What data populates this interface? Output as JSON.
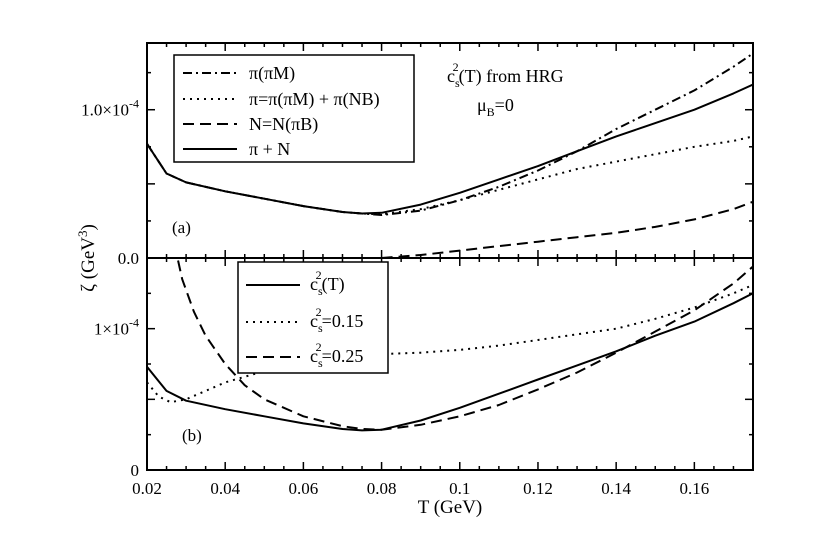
{
  "figure": {
    "xlabel": "T (GeV)",
    "ylabel_main": "ζ (GeV",
    "ylabel_sup": "3",
    "ylabel_close": ")"
  },
  "chart_data": [
    {
      "type": "line",
      "panel_label": "(a)",
      "annotation": {
        "line1_base": "c",
        "line1_sub": "s",
        "line1_sup": "2",
        "line1_rest": "(T) from HRG",
        "line2_base": "μ",
        "line2_sub": "B",
        "line2_rest": "=0"
      },
      "xlim": [
        0.02,
        0.175
      ],
      "ylim": [
        0,
        1.45
      ],
      "yticks": [
        {
          "value": 0,
          "label": "0.0"
        },
        {
          "value": 1.0,
          "label": "1.0×10",
          "sup": "-4"
        }
      ],
      "legend": "top-left",
      "series": [
        {
          "name": "π(πM)",
          "style": "dashdot",
          "x": [
            0.02,
            0.025,
            0.03,
            0.04,
            0.05,
            0.06,
            0.07,
            0.075,
            0.08,
            0.09,
            0.1,
            0.11,
            0.12,
            0.13,
            0.14,
            0.15,
            0.16,
            0.17,
            0.175
          ],
          "y": [
            0.77,
            0.57,
            0.51,
            0.45,
            0.4,
            0.35,
            0.31,
            0.3,
            0.29,
            0.32,
            0.39,
            0.48,
            0.59,
            0.72,
            0.87,
            1.0,
            1.13,
            1.29,
            1.38
          ]
        },
        {
          "name": "π=π(πM) + π(NB)",
          "style": "dotted",
          "x": [
            0.02,
            0.025,
            0.03,
            0.04,
            0.05,
            0.06,
            0.07,
            0.075,
            0.08,
            0.09,
            0.1,
            0.11,
            0.12,
            0.13,
            0.14,
            0.15,
            0.16,
            0.17,
            0.175
          ],
          "y": [
            0.77,
            0.57,
            0.51,
            0.45,
            0.4,
            0.35,
            0.31,
            0.3,
            0.295,
            0.33,
            0.39,
            0.46,
            0.53,
            0.6,
            0.65,
            0.7,
            0.75,
            0.79,
            0.82
          ]
        },
        {
          "name": "N=N(πB)",
          "style": "dashed",
          "x": [
            0.08,
            0.09,
            0.1,
            0.11,
            0.12,
            0.13,
            0.14,
            0.15,
            0.16,
            0.17,
            0.175
          ],
          "y": [
            0.0,
            0.02,
            0.05,
            0.08,
            0.11,
            0.14,
            0.17,
            0.21,
            0.26,
            0.33,
            0.38
          ]
        },
        {
          "name": "π + N",
          "style": "solid",
          "x": [
            0.02,
            0.025,
            0.03,
            0.04,
            0.05,
            0.06,
            0.07,
            0.075,
            0.08,
            0.09,
            0.1,
            0.11,
            0.12,
            0.13,
            0.14,
            0.15,
            0.16,
            0.17,
            0.175
          ],
          "y": [
            0.77,
            0.57,
            0.51,
            0.45,
            0.4,
            0.35,
            0.31,
            0.3,
            0.305,
            0.36,
            0.44,
            0.53,
            0.62,
            0.72,
            0.82,
            0.91,
            1.0,
            1.11,
            1.17
          ]
        }
      ]
    },
    {
      "type": "line",
      "panel_label": "(b)",
      "xlim": [
        0.02,
        0.175
      ],
      "ylim": [
        0,
        1.5
      ],
      "xticks": [
        0.02,
        0.04,
        0.06,
        0.08,
        0.1,
        0.12,
        0.14,
        0.16
      ],
      "xtick_labels": [
        "0.02",
        "0.04",
        "0.06",
        "0.08",
        "0.1",
        "0.12",
        "0.14",
        "0.16"
      ],
      "yticks": [
        {
          "value": 0,
          "label": "0"
        },
        {
          "value": 1.0,
          "label": "1×10",
          "sup": "-4"
        }
      ],
      "legend": "top-center",
      "series": [
        {
          "name_base": "c",
          "name_sub": "s",
          "name_sup": "2",
          "name_rest": "(T)",
          "style": "solid",
          "x": [
            0.02,
            0.025,
            0.03,
            0.04,
            0.05,
            0.06,
            0.07,
            0.075,
            0.08,
            0.09,
            0.1,
            0.11,
            0.12,
            0.13,
            0.14,
            0.15,
            0.16,
            0.17,
            0.175
          ],
          "y": [
            0.73,
            0.56,
            0.49,
            0.43,
            0.38,
            0.33,
            0.29,
            0.28,
            0.285,
            0.35,
            0.44,
            0.54,
            0.64,
            0.74,
            0.84,
            0.95,
            1.05,
            1.18,
            1.25
          ]
        },
        {
          "name_base": "c",
          "name_sub": "s",
          "name_sup": "2",
          "name_rest": "=0.15",
          "style": "dotted",
          "x": [
            0.02,
            0.023,
            0.026,
            0.03,
            0.035,
            0.04,
            0.05,
            0.06,
            0.07,
            0.08,
            0.09,
            0.1,
            0.11,
            0.12,
            0.13,
            0.14,
            0.15,
            0.16,
            0.17,
            0.175
          ],
          "y": [
            0.62,
            0.52,
            0.48,
            0.5,
            0.56,
            0.62,
            0.7,
            0.76,
            0.8,
            0.82,
            0.83,
            0.85,
            0.88,
            0.92,
            0.96,
            1.0,
            1.07,
            1.15,
            1.25,
            1.31
          ]
        },
        {
          "name_base": "c",
          "name_sub": "s",
          "name_sup": "2",
          "name_rest": "=0.25",
          "style": "dashed",
          "x": [
            0.027,
            0.029,
            0.032,
            0.035,
            0.04,
            0.045,
            0.05,
            0.06,
            0.07,
            0.075,
            0.08,
            0.09,
            0.1,
            0.11,
            0.12,
            0.13,
            0.14,
            0.15,
            0.16,
            0.17,
            0.175
          ],
          "y": [
            1.6,
            1.35,
            1.12,
            0.95,
            0.75,
            0.6,
            0.5,
            0.38,
            0.31,
            0.29,
            0.285,
            0.32,
            0.38,
            0.46,
            0.57,
            0.69,
            0.83,
            0.98,
            1.13,
            1.32,
            1.44
          ]
        }
      ]
    }
  ]
}
